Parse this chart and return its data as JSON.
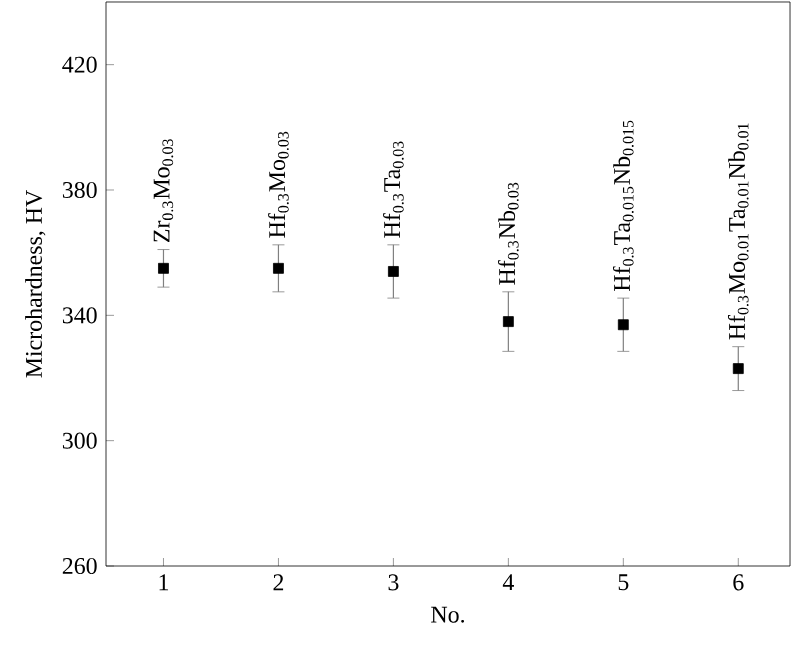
{
  "chart_data": {
    "type": "scatter",
    "xlabel": "No.",
    "ylabel": "Microhardness, HV",
    "x": [
      1,
      2,
      3,
      4,
      5,
      6
    ],
    "values": [
      355,
      355,
      354,
      338,
      337,
      323
    ],
    "errors": [
      6,
      7.5,
      8.5,
      9.5,
      8.5,
      7
    ],
    "color": "#000000",
    "marker": "square",
    "xlim": [
      0.5,
      6.45
    ],
    "xticks": [
      1,
      2,
      3,
      4,
      5,
      6
    ],
    "ylim": [
      260,
      440
    ],
    "yticks": [
      260,
      300,
      340,
      380,
      420
    ],
    "annotations": [
      {
        "text": "Zr$_{0.3}$Mo$_{0.03}$",
        "x": 1,
        "y": 355
      },
      {
        "text": "Hf$_{0.3}$Mo$_{0.03}$",
        "x": 2,
        "y": 355
      },
      {
        "text": "Hf$_{0.3}$Ta$_{0.03}$",
        "x": 3,
        "y": 354
      },
      {
        "text": "Hf$_{0.3}$Nb$_{0.03}$",
        "x": 4,
        "y": 338
      },
      {
        "text": "Hf$_{0.3}$Ta$_{0.015}$Nb$_{0.015}$",
        "x": 5,
        "y": 337
      },
      {
        "text": "Hf$_{0.3}$Mo$_{0.01}$Ta$_{0.01}$Nb$_{0.01}$",
        "x": 6,
        "y": 323
      }
    ]
  }
}
